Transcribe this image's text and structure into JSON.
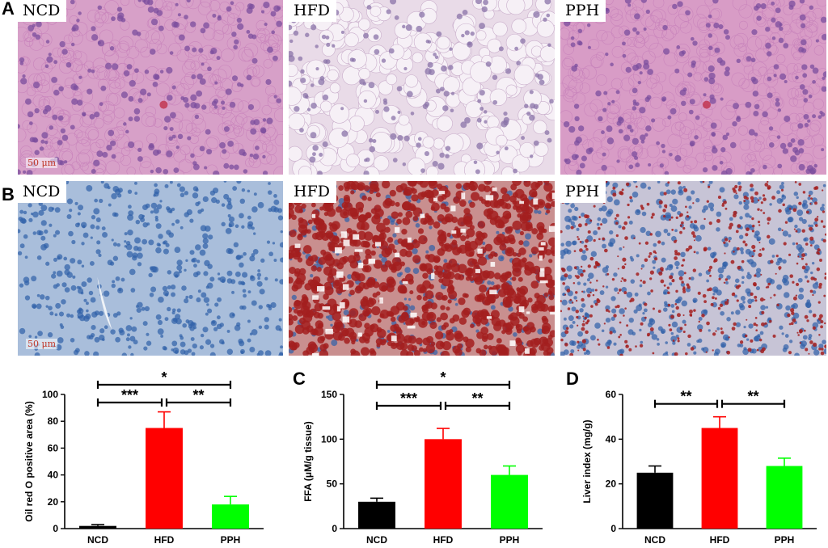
{
  "panels": {
    "A": "A",
    "B": "B",
    "C": "C",
    "D": "D"
  },
  "he_images": [
    {
      "label": "NCD",
      "scale": "50 μm",
      "stain": "he-normal"
    },
    {
      "label": "HFD",
      "scale": "",
      "stain": "he-fatty"
    },
    {
      "label": "PPH",
      "scale": "",
      "stain": "he-dense"
    }
  ],
  "oro_images": [
    {
      "label": "NCD",
      "scale": "50 μm",
      "stain": "oro-blue"
    },
    {
      "label": "HFD",
      "scale": "",
      "stain": "oro-red"
    },
    {
      "label": "PPH",
      "scale": "",
      "stain": "oro-mixed"
    }
  ],
  "colors": {
    "NCD": "#000000",
    "HFD": "#ff0000",
    "PPH": "#00ff00",
    "he_bg": "#d9a3c9",
    "oro_bg": "#9db6d6",
    "oil_red": "#a31f1f"
  },
  "chart_data": [
    {
      "type": "bar",
      "categories": [
        "NCD",
        "HFD",
        "PPH"
      ],
      "values": [
        2,
        75,
        18
      ],
      "errors": [
        1,
        12,
        6
      ],
      "ylabel": "Oil red O positive area  (%)",
      "ylim": [
        0,
        100
      ],
      "yticks": [
        0,
        20,
        40,
        60,
        80,
        100
      ],
      "significance": [
        {
          "from": "NCD",
          "to": "HFD",
          "label": "***"
        },
        {
          "from": "HFD",
          "to": "PPH",
          "label": "**"
        },
        {
          "from": "NCD",
          "to": "PPH",
          "label": "*"
        }
      ]
    },
    {
      "type": "bar",
      "categories": [
        "NCD",
        "HFD",
        "PPH"
      ],
      "values": [
        30,
        100,
        60
      ],
      "errors": [
        4,
        12,
        10
      ],
      "ylabel": "FFA (μM/g tissue)",
      "ylim": [
        0,
        150
      ],
      "yticks": [
        0,
        50,
        100,
        150
      ],
      "significance": [
        {
          "from": "NCD",
          "to": "HFD",
          "label": "***"
        },
        {
          "from": "HFD",
          "to": "PPH",
          "label": "**"
        },
        {
          "from": "NCD",
          "to": "PPH",
          "label": "*"
        }
      ]
    },
    {
      "type": "bar",
      "categories": [
        "NCD",
        "HFD",
        "PPH"
      ],
      "values": [
        25,
        45,
        28
      ],
      "errors": [
        3,
        5,
        3.5
      ],
      "ylabel": "Liver index (mg/g)",
      "ylim": [
        0,
        60
      ],
      "yticks": [
        0,
        20,
        40,
        60
      ],
      "significance": [
        {
          "from": "NCD",
          "to": "HFD",
          "label": "**"
        },
        {
          "from": "HFD",
          "to": "PPH",
          "label": "**"
        }
      ]
    }
  ]
}
